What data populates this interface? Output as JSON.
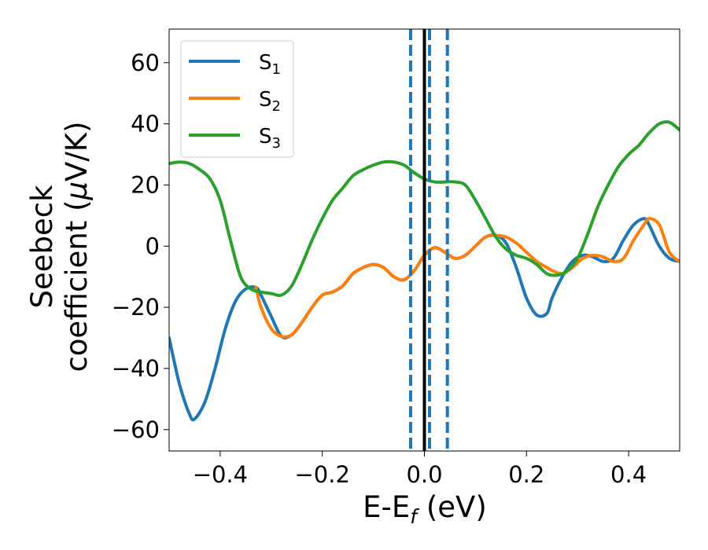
{
  "chart_data": {
    "type": "line",
    "title": "",
    "xlabel_main": "E-E",
    "xlabel_sub": "f",
    "xlabel_unit": " (eV)",
    "ylabel_line1": "Seebeck",
    "ylabel_line2_text": "coefficient  (",
    "ylabel_line2_mu": "μ",
    "ylabel_line2_unit": "V/K)",
    "xlim": [
      -0.5,
      0.5
    ],
    "ylim": [
      -67,
      71
    ],
    "xticks": [
      -0.4,
      -0.2,
      0.0,
      0.2,
      0.4
    ],
    "xtick_labels": [
      "−0.4",
      "−0.2",
      "0.0",
      "0.2",
      "0.4"
    ],
    "yticks": [
      -60,
      -40,
      -20,
      0,
      20,
      40,
      60
    ],
    "ytick_labels": [
      "−60",
      "−40",
      "−20",
      "0",
      "20",
      "40",
      "60"
    ],
    "grid": false,
    "legend_position": "top-left",
    "series": [
      {
        "name": "S",
        "sub": "1",
        "color": "#1f77b4",
        "x": [
          -0.5,
          -0.48,
          -0.46,
          -0.45,
          -0.43,
          -0.41,
          -0.39,
          -0.37,
          -0.35,
          -0.33,
          -0.32,
          -0.3,
          -0.28,
          -0.26,
          -0.24,
          -0.22,
          -0.2,
          -0.18,
          -0.16,
          -0.14,
          -0.12,
          -0.1,
          -0.08,
          -0.06,
          -0.04,
          -0.02,
          0.0,
          0.02,
          0.04,
          0.06,
          0.08,
          0.1,
          0.12,
          0.14,
          0.16,
          0.18,
          0.2,
          0.22,
          0.24,
          0.25,
          0.27,
          0.29,
          0.31,
          0.33,
          0.35,
          0.37,
          0.39,
          0.41,
          0.43,
          0.44,
          0.46,
          0.48,
          0.5
        ],
        "y": [
          -30,
          -45,
          -55,
          -56.5,
          -51,
          -40,
          -27,
          -18,
          -14,
          -13.5,
          -16,
          -23,
          -29.5,
          -29,
          -25,
          -20,
          -16,
          -15,
          -13,
          -9,
          -7,
          -6,
          -7,
          -10,
          -11,
          -8,
          -3,
          -0.5,
          -2,
          -4,
          -3,
          0,
          3,
          3.5,
          1,
          -7,
          -17,
          -22.5,
          -22,
          -17,
          -10,
          -5,
          -3,
          -3.5,
          -5,
          -4,
          2,
          7,
          9,
          7,
          0,
          -4,
          -5
        ]
      },
      {
        "name": "S",
        "sub": "2",
        "color": "#ff7f0e",
        "x": [
          -0.33,
          -0.32,
          -0.3,
          -0.28,
          -0.26,
          -0.24,
          -0.22,
          -0.2,
          -0.18,
          -0.16,
          -0.14,
          -0.12,
          -0.1,
          -0.08,
          -0.06,
          -0.04,
          -0.02,
          0.0,
          0.02,
          0.04,
          0.06,
          0.08,
          0.1,
          0.12,
          0.14,
          0.16,
          0.18,
          0.2,
          0.22,
          0.24,
          0.25,
          0.27,
          0.29,
          0.31,
          0.33,
          0.35,
          0.37,
          0.39,
          0.41,
          0.43,
          0.44,
          0.46,
          0.48,
          0.5
        ],
        "y": [
          -13.5,
          -20,
          -27,
          -29.5,
          -29,
          -25,
          -20,
          -16,
          -15,
          -13,
          -9,
          -7,
          -6,
          -7,
          -10,
          -11,
          -8,
          -3,
          -0.5,
          -2,
          -4,
          -3,
          0,
          3,
          3.5,
          3,
          1,
          -2,
          -5,
          -7,
          -8,
          -9,
          -7,
          -4,
          -3,
          -3.5,
          -5,
          -4,
          2,
          7,
          9,
          7,
          -2,
          -5
        ]
      },
      {
        "name": "S",
        "sub": "3",
        "color": "#2ca02c",
        "x": [
          -0.5,
          -0.48,
          -0.46,
          -0.44,
          -0.42,
          -0.4,
          -0.38,
          -0.36,
          -0.34,
          -0.32,
          -0.3,
          -0.28,
          -0.26,
          -0.24,
          -0.22,
          -0.2,
          -0.18,
          -0.16,
          -0.14,
          -0.12,
          -0.1,
          -0.08,
          -0.06,
          -0.04,
          -0.02,
          0.0,
          0.02,
          0.04,
          0.06,
          0.08,
          0.1,
          0.12,
          0.14,
          0.16,
          0.18,
          0.2,
          0.22,
          0.24,
          0.26,
          0.28,
          0.3,
          0.32,
          0.34,
          0.36,
          0.38,
          0.4,
          0.42,
          0.44,
          0.46,
          0.48,
          0.5
        ],
        "y": [
          27,
          27.5,
          27,
          25,
          22,
          15,
          2,
          -10,
          -14,
          -15,
          -15.5,
          -16,
          -13,
          -6,
          2,
          9,
          15,
          19,
          23,
          25,
          26.5,
          27.5,
          27.5,
          26.5,
          24,
          22,
          21,
          21,
          21,
          20,
          15,
          9,
          3,
          -1,
          -3,
          -4,
          -6,
          -9,
          -9.5,
          -8,
          -4,
          4,
          13,
          20,
          26,
          30,
          33,
          37,
          40,
          40.5,
          38
        ]
      }
    ],
    "vlines": [
      {
        "x": 0.0,
        "style": "solid",
        "color": "#000000"
      },
      {
        "x": -0.027,
        "style": "dashed",
        "color": "#1f77b4"
      },
      {
        "x": 0.01,
        "style": "dashed",
        "color": "#1f77b4"
      },
      {
        "x": 0.045,
        "style": "dashed",
        "color": "#1f77b4"
      }
    ]
  }
}
